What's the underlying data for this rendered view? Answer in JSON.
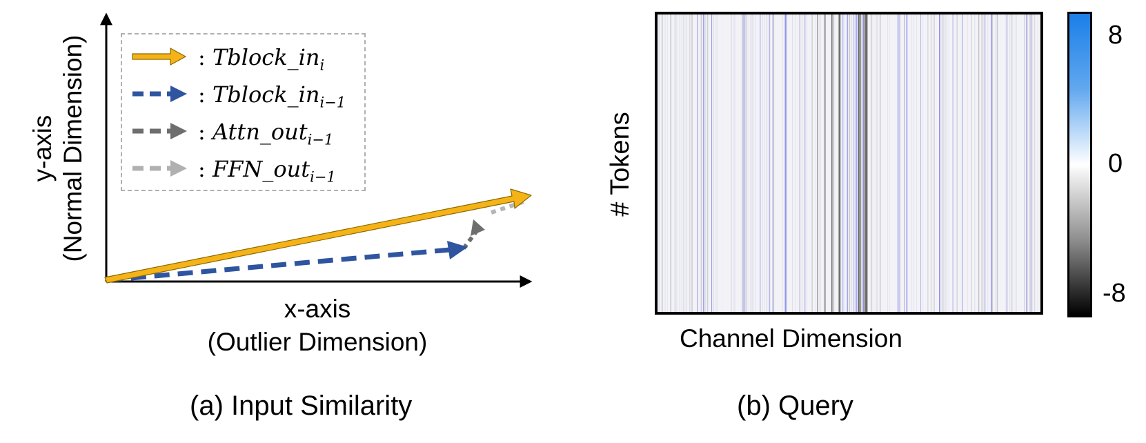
{
  "panel_a": {
    "caption": "(a) Input Similarity",
    "y_axis_label": [
      "y-axis",
      "(Normal Dimension)"
    ],
    "x_axis_label": [
      "x-axis",
      "(Outlier Dimension)"
    ],
    "legend": [
      {
        "prefix": ": ",
        "base": "Tblock_in",
        "sub": "i",
        "color": "#f5b318",
        "style": "solid"
      },
      {
        "prefix": ": ",
        "base": "Tblock_in",
        "sub": "i−1",
        "color": "#2f55a0",
        "style": "dashed"
      },
      {
        "prefix": ": ",
        "base": "Attn_out",
        "sub": "i−1",
        "color": "#6e6e6e",
        "style": "dashed"
      },
      {
        "prefix": ": ",
        "base": "FFN_out",
        "sub": "i−1",
        "color": "#b0b0b0",
        "style": "dashed"
      }
    ]
  },
  "panel_b": {
    "caption": "(b) Query",
    "y_label": "# Tokens",
    "x_label": "Channel Dimension",
    "colorbar_ticks": [
      "8",
      "0",
      "-8"
    ],
    "colorbar_colors": {
      "high": "#1a7fe8",
      "mid": "#ffffff",
      "low": "#000000"
    }
  }
}
